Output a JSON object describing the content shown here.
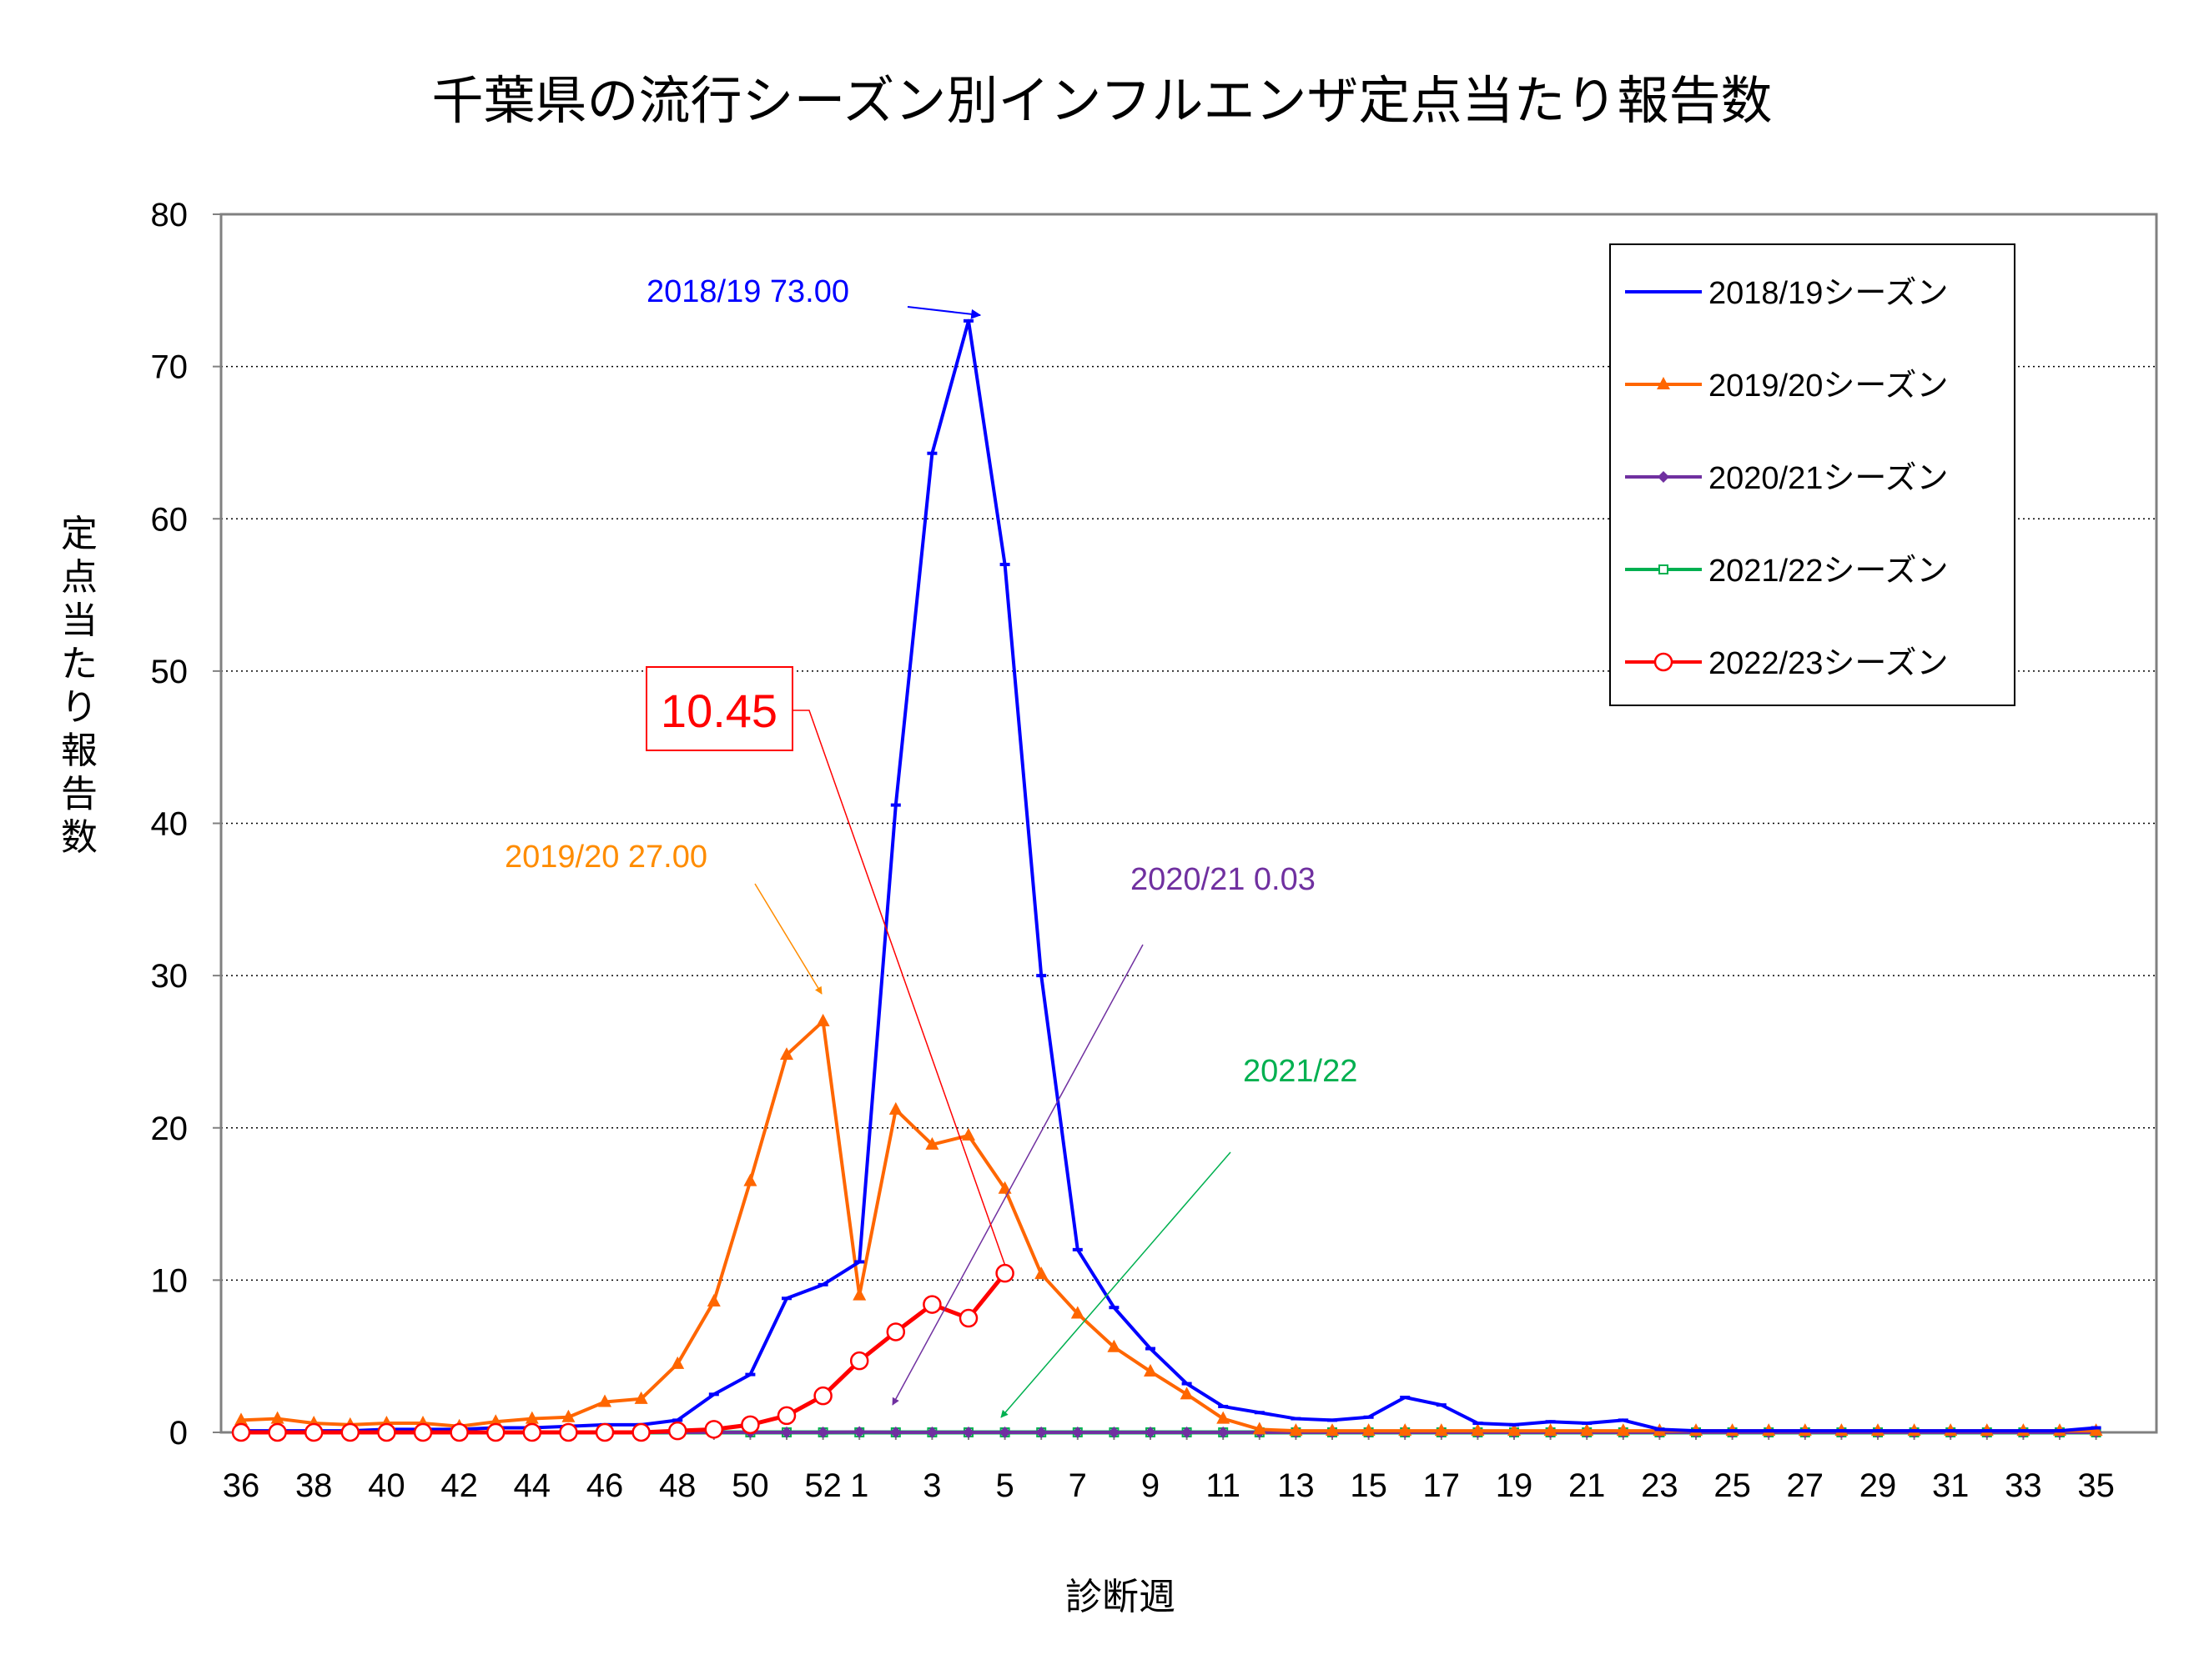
{
  "chart_data": {
    "type": "line",
    "title": "千葉県の流行シーズン別インフルエンザ定点当たり報告数",
    "xlabel": "診断週",
    "ylabel": "定点当たり報告数",
    "ylim": [
      0,
      80
    ],
    "yticks": [
      0,
      10,
      20,
      30,
      40,
      50,
      60,
      70,
      80
    ],
    "grid": "horizontal-dotted",
    "legend_position": "top-right",
    "weeks": [
      36,
      37,
      38,
      39,
      40,
      41,
      42,
      43,
      44,
      45,
      46,
      47,
      48,
      49,
      50,
      51,
      52,
      1,
      2,
      3,
      4,
      5,
      6,
      7,
      8,
      9,
      10,
      11,
      12,
      13,
      14,
      15,
      16,
      17,
      18,
      19,
      20,
      21,
      22,
      23,
      24,
      25,
      26,
      27,
      28,
      29,
      30,
      31,
      32,
      33,
      34,
      35
    ],
    "x_tick_labels": [
      "36",
      "38",
      "40",
      "42",
      "44",
      "46",
      "48",
      "50",
      "52",
      "1",
      "3",
      "5",
      "7",
      "9",
      "11",
      "13",
      "15",
      "17",
      "19",
      "21",
      "23",
      "25",
      "27",
      "29",
      "31",
      "33",
      "35"
    ],
    "series": [
      {
        "name": "2018/19シーズン",
        "color": "#0000ff",
        "marker": "dash",
        "values": [
          0.1,
          0.1,
          0.1,
          0.1,
          0.2,
          0.2,
          0.2,
          0.3,
          0.3,
          0.4,
          0.5,
          0.5,
          0.8,
          2.5,
          3.8,
          8.8,
          9.7,
          11.2,
          41.2,
          64.3,
          73.0,
          57.0,
          30.0,
          12.0,
          8.2,
          5.5,
          3.2,
          1.7,
          1.3,
          0.9,
          0.8,
          1.0,
          2.3,
          1.8,
          0.6,
          0.5,
          0.7,
          0.6,
          0.8,
          0.2,
          0.1,
          0.1,
          0.1,
          0.1,
          0.1,
          0.1,
          0.1,
          0.1,
          0.1,
          0.1,
          0.1,
          0.3
        ]
      },
      {
        "name": "2019/20シーズン",
        "color": "#ff6600",
        "marker": "triangle",
        "values": [
          0.8,
          0.9,
          0.6,
          0.5,
          0.6,
          0.6,
          0.4,
          0.7,
          0.9,
          1.0,
          2.0,
          2.2,
          4.5,
          8.6,
          16.5,
          24.8,
          27.0,
          9.0,
          21.2,
          18.9,
          19.5,
          16.0,
          10.4,
          7.8,
          5.6,
          4.0,
          2.5,
          0.9,
          0.2,
          0.1,
          0.1,
          0.1,
          0.1,
          0.1,
          0.1,
          0.1,
          0.1,
          0.1,
          0.1,
          0.1,
          0.1,
          0.1,
          0.1,
          0.1,
          0.1,
          0.1,
          0.1,
          0.1,
          0.1,
          0.1,
          0.1,
          0.1
        ]
      },
      {
        "name": "2020/21シーズン",
        "color": "#7030a0",
        "marker": "diamond",
        "values": [
          0.0,
          0.0,
          0.0,
          0.0,
          0.0,
          0.0,
          0.0,
          0.0,
          0.0,
          0.0,
          0.0,
          0.0,
          0.0,
          0.0,
          0.0,
          0.0,
          0.0,
          0.03,
          0.0,
          0.0,
          0.0,
          0.0,
          0.0,
          0.0,
          0.0,
          0.0,
          0.0,
          0.0,
          0.0,
          0.0,
          0.0,
          0.0,
          0.0,
          0.0,
          0.0,
          0.0,
          0.0,
          0.0,
          0.0,
          0.0,
          0.0,
          0.0,
          0.0,
          0.0,
          0.0,
          0.0,
          0.0,
          0.0,
          0.0,
          0.0,
          0.0,
          0.0
        ]
      },
      {
        "name": "2021/22シーズン",
        "color": "#00b050",
        "marker": "square",
        "values": [
          0.0,
          0.0,
          0.0,
          0.0,
          0.0,
          0.0,
          0.0,
          0.0,
          0.0,
          0.0,
          0.0,
          0.0,
          0.0,
          0.0,
          0.0,
          0.0,
          0.0,
          0.0,
          0.0,
          0.0,
          0.0,
          0.0,
          0.0,
          0.0,
          0.0,
          0.0,
          0.0,
          0.0,
          0.0,
          0.0,
          0.0,
          0.0,
          0.0,
          0.0,
          0.0,
          0.0,
          0.0,
          0.0,
          0.0,
          0.0,
          0.0,
          0.0,
          0.0,
          0.0,
          0.0,
          0.0,
          0.0,
          0.0,
          0.0,
          0.0,
          0.0,
          0.0
        ]
      },
      {
        "name": "2022/23シーズン",
        "color": "#ff0000",
        "marker": "circle",
        "values": [
          0.0,
          0.0,
          0.0,
          0.0,
          0.0,
          0.0,
          0.0,
          0.0,
          0.0,
          0.0,
          0.0,
          0.0,
          0.1,
          0.2,
          0.5,
          1.1,
          2.4,
          4.7,
          6.6,
          8.4,
          7.5,
          10.45
        ]
      }
    ],
    "annotations": [
      {
        "text": "2018/19 73.00",
        "color": "#0000ff"
      },
      {
        "text": "2019/20 27.00",
        "color": "#ff8c00"
      },
      {
        "text": "2020/21  0.03",
        "color": "#7030a0"
      },
      {
        "text": "2021/22",
        "color": "#00b050"
      },
      {
        "text": "10.45",
        "color": "#ff0000"
      }
    ]
  }
}
